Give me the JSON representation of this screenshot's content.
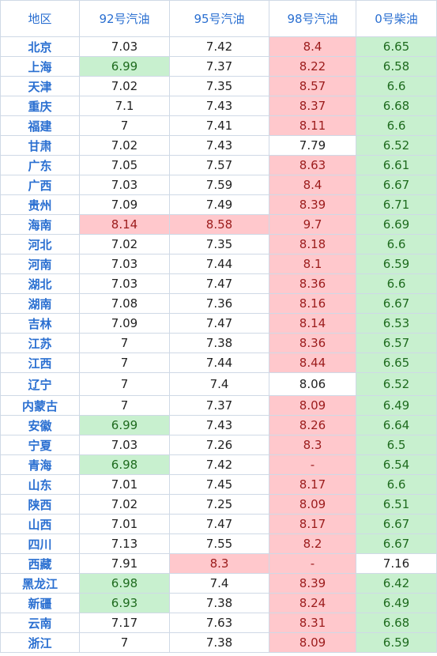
{
  "table": {
    "headers": [
      "地区",
      "92号汽油",
      "95号汽油",
      "98号汽油",
      "0号柴油"
    ],
    "colors": {
      "red_bg": "#ffc8cc",
      "green_bg": "#c8f0cf",
      "header_text": "#2a6fd1"
    },
    "rows": [
      {
        "region": "北京",
        "p92": "7.03",
        "p95": "7.42",
        "p98": "8.4",
        "p0": "6.65",
        "c92": "white",
        "c95": "white",
        "c98": "red",
        "c0": "green"
      },
      {
        "region": "上海",
        "p92": "6.99",
        "p95": "7.37",
        "p98": "8.22",
        "p0": "6.58",
        "c92": "green",
        "c95": "white",
        "c98": "red",
        "c0": "green"
      },
      {
        "region": "天津",
        "p92": "7.02",
        "p95": "7.35",
        "p98": "8.57",
        "p0": "6.6",
        "c92": "white",
        "c95": "white",
        "c98": "red",
        "c0": "green"
      },
      {
        "region": "重庆",
        "p92": "7.1",
        "p95": "7.43",
        "p98": "8.37",
        "p0": "6.68",
        "c92": "white",
        "c95": "white",
        "c98": "red",
        "c0": "green"
      },
      {
        "region": "福建",
        "p92": "7",
        "p95": "7.41",
        "p98": "8.11",
        "p0": "6.6",
        "c92": "white",
        "c95": "white",
        "c98": "red",
        "c0": "green"
      },
      {
        "region": "甘肃",
        "p92": "7.02",
        "p95": "7.43",
        "p98": "7.79",
        "p0": "6.52",
        "c92": "white",
        "c95": "white",
        "c98": "white",
        "c0": "green"
      },
      {
        "region": "广东",
        "p92": "7.05",
        "p95": "7.57",
        "p98": "8.63",
        "p0": "6.61",
        "c92": "white",
        "c95": "white",
        "c98": "red",
        "c0": "green"
      },
      {
        "region": "广西",
        "p92": "7.03",
        "p95": "7.59",
        "p98": "8.4",
        "p0": "6.67",
        "c92": "white",
        "c95": "white",
        "c98": "red",
        "c0": "green"
      },
      {
        "region": "贵州",
        "p92": "7.09",
        "p95": "7.49",
        "p98": "8.39",
        "p0": "6.71",
        "c92": "white",
        "c95": "white",
        "c98": "red",
        "c0": "green"
      },
      {
        "region": "海南",
        "p92": "8.14",
        "p95": "8.58",
        "p98": "9.7",
        "p0": "6.69",
        "c92": "red",
        "c95": "red",
        "c98": "red",
        "c0": "green"
      },
      {
        "region": "河北",
        "p92": "7.02",
        "p95": "7.35",
        "p98": "8.18",
        "p0": "6.6",
        "c92": "white",
        "c95": "white",
        "c98": "red",
        "c0": "green"
      },
      {
        "region": "河南",
        "p92": "7.03",
        "p95": "7.44",
        "p98": "8.1",
        "p0": "6.59",
        "c92": "white",
        "c95": "white",
        "c98": "red",
        "c0": "green"
      },
      {
        "region": "湖北",
        "p92": "7.03",
        "p95": "7.47",
        "p98": "8.36",
        "p0": "6.6",
        "c92": "white",
        "c95": "white",
        "c98": "red",
        "c0": "green"
      },
      {
        "region": "湖南",
        "p92": "7.08",
        "p95": "7.36",
        "p98": "8.16",
        "p0": "6.67",
        "c92": "white",
        "c95": "white",
        "c98": "red",
        "c0": "green"
      },
      {
        "region": "吉林",
        "p92": "7.09",
        "p95": "7.47",
        "p98": "8.14",
        "p0": "6.53",
        "c92": "white",
        "c95": "white",
        "c98": "red",
        "c0": "green"
      },
      {
        "region": "江苏",
        "p92": "7",
        "p95": "7.38",
        "p98": "8.36",
        "p0": "6.57",
        "c92": "white",
        "c95": "white",
        "c98": "red",
        "c0": "green"
      },
      {
        "region": "江西",
        "p92": "7",
        "p95": "7.44",
        "p98": "8.44",
        "p0": "6.65",
        "c92": "white",
        "c95": "white",
        "c98": "red",
        "c0": "green"
      },
      {
        "region": "辽宁",
        "p92": "7",
        "p95": "7.4",
        "p98": "8.06",
        "p0": "6.52",
        "c92": "white",
        "c95": "white",
        "c98": "white",
        "c0": "green",
        "tall": true
      },
      {
        "region": "内蒙古",
        "p92": "7",
        "p95": "7.37",
        "p98": "8.09",
        "p0": "6.49",
        "c92": "white",
        "c95": "white",
        "c98": "red",
        "c0": "green"
      },
      {
        "region": "安徽",
        "p92": "6.99",
        "p95": "7.43",
        "p98": "8.26",
        "p0": "6.64",
        "c92": "green",
        "c95": "white",
        "c98": "red",
        "c0": "green"
      },
      {
        "region": "宁夏",
        "p92": "7.03",
        "p95": "7.26",
        "p98": "8.3",
        "p0": "6.5",
        "c92": "white",
        "c95": "white",
        "c98": "red",
        "c0": "green"
      },
      {
        "region": "青海",
        "p92": "6.98",
        "p95": "7.42",
        "p98": "-",
        "p0": "6.54",
        "c92": "green",
        "c95": "white",
        "c98": "red",
        "c0": "green"
      },
      {
        "region": "山东",
        "p92": "7.01",
        "p95": "7.45",
        "p98": "8.17",
        "p0": "6.6",
        "c92": "white",
        "c95": "white",
        "c98": "red",
        "c0": "green"
      },
      {
        "region": "陕西",
        "p92": "7.02",
        "p95": "7.25",
        "p98": "8.09",
        "p0": "6.51",
        "c92": "white",
        "c95": "white",
        "c98": "red",
        "c0": "green"
      },
      {
        "region": "山西",
        "p92": "7.01",
        "p95": "7.47",
        "p98": "8.17",
        "p0": "6.67",
        "c92": "white",
        "c95": "white",
        "c98": "red",
        "c0": "green"
      },
      {
        "region": "四川",
        "p92": "7.13",
        "p95": "7.55",
        "p98": "8.2",
        "p0": "6.67",
        "c92": "white",
        "c95": "white",
        "c98": "red",
        "c0": "green"
      },
      {
        "region": "西藏",
        "p92": "7.91",
        "p95": "8.3",
        "p98": "-",
        "p0": "7.16",
        "c92": "white",
        "c95": "red",
        "c98": "red",
        "c0": "white"
      },
      {
        "region": "黑龙江",
        "p92": "6.98",
        "p95": "7.4",
        "p98": "8.39",
        "p0": "6.42",
        "c92": "green",
        "c95": "white",
        "c98": "red",
        "c0": "green"
      },
      {
        "region": "新疆",
        "p92": "6.93",
        "p95": "7.38",
        "p98": "8.24",
        "p0": "6.49",
        "c92": "green",
        "c95": "white",
        "c98": "red",
        "c0": "green"
      },
      {
        "region": "云南",
        "p92": "7.17",
        "p95": "7.63",
        "p98": "8.31",
        "p0": "6.68",
        "c92": "white",
        "c95": "white",
        "c98": "red",
        "c0": "green"
      },
      {
        "region": "浙江",
        "p92": "7",
        "p95": "7.38",
        "p98": "8.09",
        "p0": "6.59",
        "c92": "white",
        "c95": "white",
        "c98": "red",
        "c0": "green"
      }
    ]
  }
}
